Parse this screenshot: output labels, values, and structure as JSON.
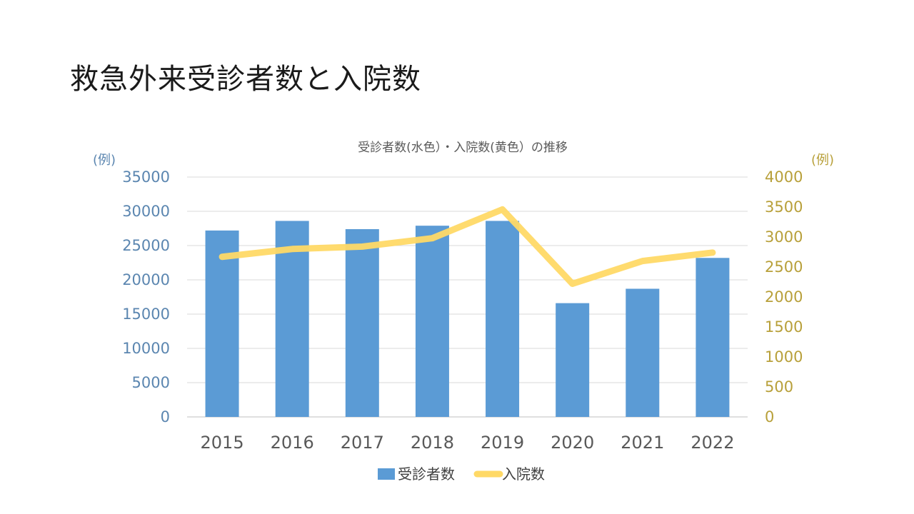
{
  "slide": {
    "title": "救急外来受診者数と入院数"
  },
  "chart_data": {
    "type": "bar",
    "title": "受診者数(水色）・入院数(黄色）の推移",
    "categories": [
      "2015",
      "2016",
      "2017",
      "2018",
      "2019",
      "2020",
      "2021",
      "2022"
    ],
    "series": [
      {
        "name": "受診者数",
        "type": "bar",
        "axis": "left",
        "color": "#5b9bd5",
        "values": [
          27200,
          28600,
          27400,
          27900,
          28600,
          16600,
          18700,
          23200
        ]
      },
      {
        "name": "入院数",
        "type": "line",
        "axis": "right",
        "color": "#ffd966",
        "values": [
          2670,
          2800,
          2840,
          2980,
          3460,
          2220,
          2600,
          2740
        ]
      }
    ],
    "y_left": {
      "unit": "(例)",
      "ylim": [
        0,
        35000
      ],
      "ticks": [
        "35000",
        "30000",
        "25000",
        "20000",
        "15000",
        "10000",
        "5000",
        "0"
      ],
      "color": "#5b86b0"
    },
    "y_right": {
      "unit": "(例)",
      "ylim": [
        0,
        4000
      ],
      "ticks": [
        "4000",
        "3500",
        "3000",
        "2500",
        "2000",
        "1500",
        "1000",
        "500",
        "0"
      ],
      "color": "#b8a03a"
    },
    "grid": true,
    "legend": "bottom"
  }
}
